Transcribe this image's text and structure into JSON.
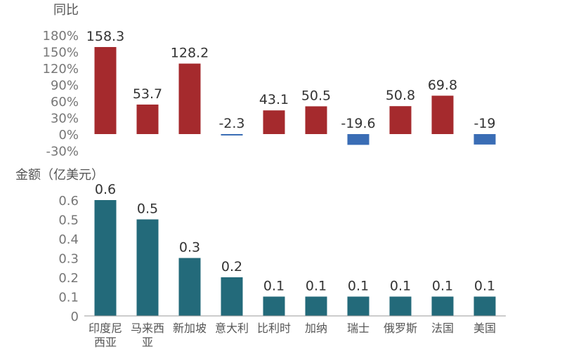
{
  "chart_data": [
    {
      "type": "bar",
      "ylabel": "同比",
      "ylim": [
        -30,
        180
      ],
      "ytick_labels": [
        "180%",
        "150%",
        "120%",
        "90%",
        "60%",
        "30%",
        "0%",
        "-30%"
      ],
      "ytick_values": [
        180,
        150,
        120,
        90,
        60,
        30,
        0,
        -30
      ],
      "categories": [
        "印度尼西亚",
        "马来西亚",
        "新加坡",
        "意大利",
        "比利时",
        "加纳",
        "瑞士",
        "俄罗斯",
        "法国",
        "美国"
      ],
      "values": [
        158.3,
        53.7,
        128.2,
        -2.3,
        43.1,
        50.5,
        -19.6,
        50.8,
        69.8,
        -19
      ],
      "data_labels": [
        "158.3",
        "53.7",
        "128.2",
        "-2.3",
        "43.1",
        "50.5",
        "-19.6",
        "50.8",
        "69.8",
        "-19"
      ],
      "colors": {
        "positive": "#a52a2d",
        "negative": "#3a6db5"
      }
    },
    {
      "type": "bar",
      "ylabel": "金额（亿美元）",
      "ylim": [
        0,
        0.6
      ],
      "ytick_labels": [
        "0.6",
        "0.5",
        "0.4",
        "0.3",
        "0.2",
        "0.1",
        "0"
      ],
      "ytick_values": [
        0.6,
        0.5,
        0.4,
        0.3,
        0.2,
        0.1,
        0
      ],
      "categories": [
        "印度尼西亚",
        "马来西亚",
        "新加坡",
        "意大利",
        "比利时",
        "加纳",
        "瑞士",
        "俄罗斯",
        "法国",
        "美国"
      ],
      "category_lines": [
        [
          "印度尼",
          "西亚"
        ],
        [
          "马来西",
          "亚"
        ],
        [
          "新加坡"
        ],
        [
          "意大利"
        ],
        [
          "比利时"
        ],
        [
          "加纳"
        ],
        [
          "瑞士"
        ],
        [
          "俄罗斯"
        ],
        [
          "法国"
        ],
        [
          "美国"
        ]
      ],
      "values": [
        0.6,
        0.5,
        0.3,
        0.2,
        0.1,
        0.1,
        0.1,
        0.1,
        0.1,
        0.1
      ],
      "data_labels": [
        "0.6",
        "0.5",
        "0.3",
        "0.2",
        "0.1",
        "0.1",
        "0.1",
        "0.1",
        "0.1",
        "0.1"
      ],
      "colors": {
        "bar": "#236a7a",
        "axis": "#999999"
      }
    }
  ]
}
